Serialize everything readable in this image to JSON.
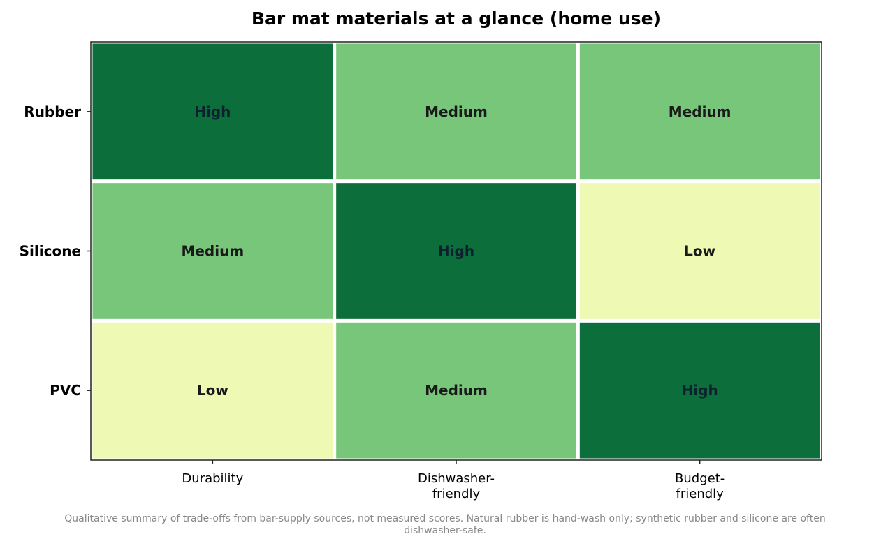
{
  "chart_data": {
    "type": "heatmap",
    "title": "Bar mat materials at a glance (home use)",
    "rows": [
      "Rubber",
      "Silicone",
      "PVC"
    ],
    "columns": [
      [
        "Durability"
      ],
      [
        "Dishwasher-",
        "friendly"
      ],
      [
        "Budget-",
        "friendly"
      ]
    ],
    "values": [
      [
        "High",
        "Medium",
        "Medium"
      ],
      [
        "Medium",
        "High",
        "Low"
      ],
      [
        "Low",
        "Medium",
        "High"
      ]
    ],
    "scale": {
      "Low": {
        "color": "#eef9b4",
        "text": "#1a1a1a"
      },
      "Medium": {
        "color": "#78c67a",
        "text": "#1a1a1a"
      },
      "High": {
        "color": "#0c6e3a",
        "text": "#0d2030"
      }
    },
    "grid": false,
    "legend": "none"
  },
  "caption": {
    "line1": "Qualitative summary of trade-offs from bar-supply sources, not measured scores. Natural rubber is hand-wash only; synthetic rubber and silicone are often",
    "line2": "dishwasher-safe."
  }
}
